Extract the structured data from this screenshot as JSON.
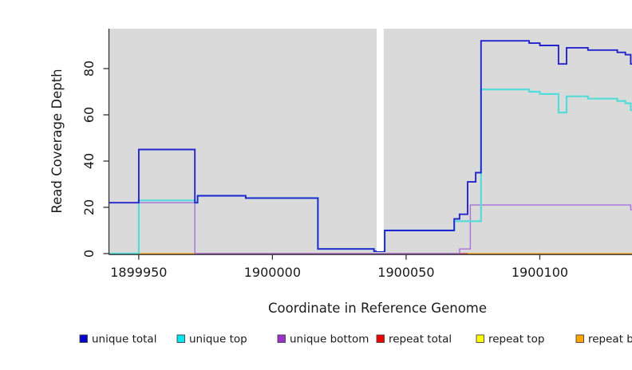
{
  "figure": {
    "background": "#FFFFFF",
    "panel_background": "#DADADA",
    "axis_color": "#333333",
    "text_color": "#1a1a1a"
  },
  "chart_data": {
    "type": "line",
    "style": "step-after",
    "title": "",
    "xlabel": "Coordinate in Reference Genome",
    "ylabel": "Read Coverage Depth",
    "xlim": [
      1899939,
      1900140
    ],
    "ylim": [
      0,
      97
    ],
    "x_ticks": [
      1899950,
      1900000,
      1900050,
      1900100
    ],
    "x_tick_labels": [
      "1899950",
      "1900000",
      "1900050",
      "1900100"
    ],
    "y_ticks": [
      0,
      20,
      40,
      60,
      80
    ],
    "y_tick_labels": [
      "0",
      "20",
      "40",
      "60",
      "80"
    ],
    "grid": false,
    "legend_position": "bottom",
    "gap_region": {
      "x_start": 1900039,
      "x_end": 1900041.6,
      "description": "white vertical band with no data"
    },
    "series": [
      {
        "name": "repeat top",
        "line_color": "#FFFF00",
        "legend_fill": "#FFFF00",
        "points": [
          [
            1899939,
            0
          ],
          [
            1900140,
            0
          ]
        ]
      },
      {
        "name": "repeat bottom",
        "line_color": "#FFA128",
        "legend_fill": "#FFA500",
        "points": [
          [
            1899939,
            0
          ],
          [
            1900140,
            0
          ]
        ]
      },
      {
        "name": "repeat total",
        "line_color": "#DC5277",
        "legend_fill": "#EE0000",
        "points": [
          [
            1899939,
            0
          ],
          [
            1900140,
            0
          ]
        ]
      },
      {
        "name": "unique bottom",
        "line_color": "#A970DA",
        "legend_fill": "#9932CC",
        "points": [
          [
            1899939,
            22
          ],
          [
            1899971,
            0
          ],
          [
            1900070,
            2
          ],
          [
            1900074,
            21
          ],
          [
            1900134,
            19
          ],
          [
            1900139,
            0
          ],
          [
            1900140,
            0
          ]
        ]
      },
      {
        "name": "unique top",
        "line_color": "#55DCD8",
        "legend_fill": "#00E5EE",
        "points": [
          [
            1899939,
            0
          ],
          [
            1899950,
            23
          ],
          [
            1899971,
            22
          ],
          [
            1899972,
            25
          ],
          [
            1899990,
            24
          ],
          [
            1900017,
            2
          ],
          [
            1900038,
            1
          ],
          [
            1900042,
            10
          ],
          [
            1900068,
            14
          ],
          [
            1900078,
            71
          ],
          [
            1900096,
            70
          ],
          [
            1900100,
            69
          ],
          [
            1900107,
            61
          ],
          [
            1900110,
            68
          ],
          [
            1900118,
            67
          ],
          [
            1900129,
            66
          ],
          [
            1900132,
            65
          ],
          [
            1900134,
            62
          ],
          [
            1900137,
            60
          ],
          [
            1900139,
            59
          ],
          [
            1900140,
            59
          ]
        ]
      },
      {
        "name": "unique total",
        "line_color": "#2424CE",
        "legend_fill": "#0000CD",
        "points": [
          [
            1899939,
            22
          ],
          [
            1899950,
            45
          ],
          [
            1899971,
            22
          ],
          [
            1899972,
            25
          ],
          [
            1899990,
            24
          ],
          [
            1900017,
            2
          ],
          [
            1900038,
            1
          ],
          [
            1900042,
            10
          ],
          [
            1900068,
            15
          ],
          [
            1900070,
            17
          ],
          [
            1900073,
            31
          ],
          [
            1900076,
            35
          ],
          [
            1900078,
            92
          ],
          [
            1900096,
            91
          ],
          [
            1900100,
            90
          ],
          [
            1900107,
            82
          ],
          [
            1900110,
            89
          ],
          [
            1900118,
            88
          ],
          [
            1900129,
            87
          ],
          [
            1900132,
            86
          ],
          [
            1900134,
            82
          ],
          [
            1900137,
            79
          ],
          [
            1900139,
            60
          ],
          [
            1900140,
            60
          ]
        ]
      }
    ],
    "legend_order": [
      "unique total",
      "unique top",
      "unique bottom",
      "repeat total",
      "repeat top",
      "repeat bottom"
    ]
  }
}
